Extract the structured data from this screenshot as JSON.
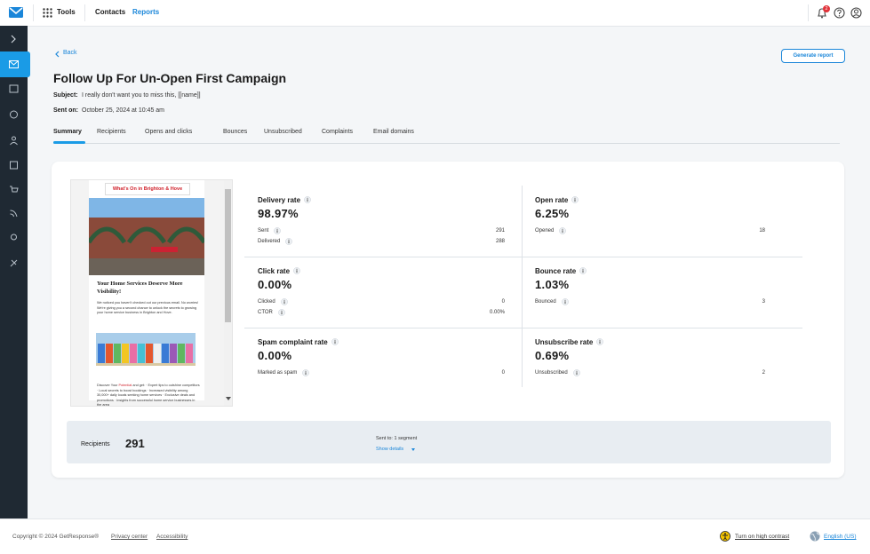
{
  "header": {
    "tools": "Tools",
    "nav": [
      "Contacts",
      "Reports"
    ],
    "notifications": "2"
  },
  "page": {
    "back": "Back",
    "action": "Generate report",
    "title": "Follow Up For Un-Open First Campaign",
    "subject_label": "Subject:",
    "subject": "I really don't want you to miss this, [[name]]",
    "sent_label": "Sent on:",
    "sent": "October 25, 2024 at 10:45 am"
  },
  "tabs": [
    "Summary",
    "Recipients",
    "Opens and clicks",
    "Bounces",
    "Unsubscribed",
    "Complaints",
    "Email domains"
  ],
  "preview": {
    "banner": "What's On in Brighton & Hove",
    "heading": "Your Home Services Deserve More Visibility!",
    "intro": "We noticed you haven't checked out our previous email. No worries! We're giving you a second chance to unlock the secrets to growing your home service business in Brighton and Hove.",
    "body_pre": "Discover Your",
    "body_highlight": "Potential",
    "body_rest": "and get: · Expert tips to outshine competitors · Local secrets to boost bookings · Increased visibility among 30,000+ daily locals seeking home services · Exclusive deals and promotions · Insights from successful home service businesses in the area"
  },
  "metrics": [
    {
      "title": "Delivery rate",
      "value": "98.97%",
      "rows": [
        [
          "Sent",
          "291"
        ],
        [
          "Delivered",
          "288"
        ]
      ]
    },
    {
      "title": "Open rate",
      "value": "6.25%",
      "rows": [
        [
          "Opened",
          "18"
        ]
      ]
    },
    {
      "title": "Click rate",
      "value": "0.00%",
      "rows": [
        [
          "Clicked",
          "0"
        ],
        [
          "CTOR",
          "0.00%"
        ]
      ]
    },
    {
      "title": "Bounce rate",
      "value": "1.03%",
      "rows": [
        [
          "Bounced",
          "3"
        ]
      ]
    },
    {
      "title": "Spam complaint rate",
      "value": "0.00%",
      "rows": [
        [
          "Marked as spam",
          "0"
        ]
      ]
    },
    {
      "title": "Unsubscribe rate",
      "value": "0.69%",
      "rows": [
        [
          "Unsubscribed",
          "2"
        ]
      ]
    }
  ],
  "recipients": {
    "label": "Recipients",
    "count": "291",
    "sent_to": "Sent to: 1 segment",
    "details": "Show details"
  },
  "footer": {
    "copyright": "Copyright © 2024 GetResponse®",
    "links": [
      "Privacy center",
      "Accessibility"
    ],
    "contrast": "Turn on high contrast",
    "language": "English (US)"
  }
}
